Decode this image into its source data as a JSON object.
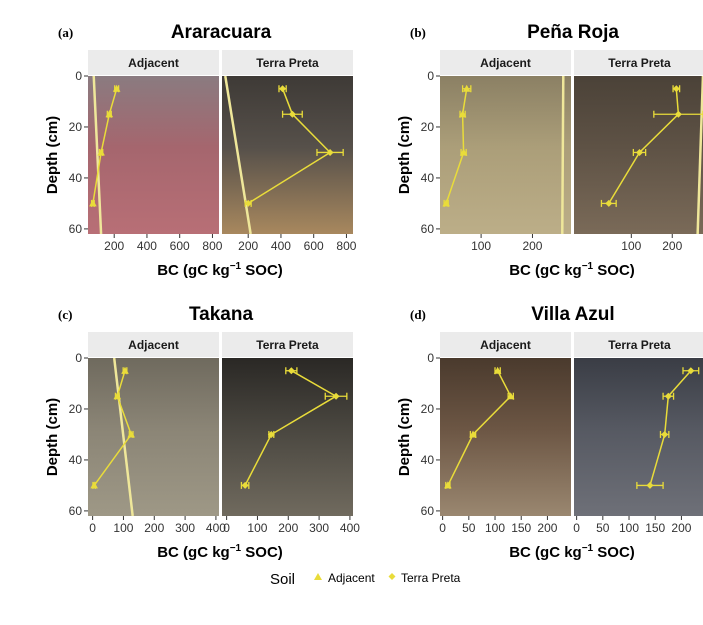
{
  "figure": {
    "background": "#ffffff",
    "strip_color": "#ebebeb",
    "series_color": "#e9dc3a",
    "axis_label_y": "Depth (cm)",
    "axis_label_x": "BC (gC kg",
    "axis_label_x_sup": "−1",
    "axis_label_x_end": " SOC)",
    "legend": {
      "title": "Soil",
      "items": [
        "Adjacent",
        "Terra Preta"
      ]
    }
  },
  "chart_data": [
    {
      "letter": "(a)",
      "title": "Araracuara",
      "type": "line",
      "ylabel": "Depth (cm)",
      "ylim": [
        0,
        62
      ],
      "yticks": [
        0,
        20,
        40,
        60
      ],
      "ytick_labels": [
        "0",
        "20",
        "40",
        "60"
      ],
      "y_reversed": true,
      "facets": [
        {
          "strip": "Adjacent",
          "xlim": [
            40,
            840
          ],
          "xticks": [
            200,
            400,
            600,
            800
          ],
          "xtick_labels": [
            "200",
            "400",
            "600",
            "800"
          ],
          "background": {
            "top": "#8a7b80",
            "mid": "#a5666e",
            "bottom": "#b86f76"
          },
          "rule": {
            "x_top": 75,
            "x_bottom": 120
          },
          "series": {
            "marker": "triangle",
            "points": [
              {
                "depth": 5,
                "bc": 215,
                "err": 12
              },
              {
                "depth": 15,
                "bc": 170,
                "err": 12
              },
              {
                "depth": 30,
                "bc": 120,
                "err": 10
              },
              {
                "depth": 50,
                "bc": 70,
                "err": 8
              }
            ]
          }
        },
        {
          "strip": "Terra Preta",
          "xlim": [
            40,
            840
          ],
          "xticks": [
            200,
            400,
            600,
            800
          ],
          "xtick_labels": [
            "200",
            "400",
            "600",
            "800"
          ],
          "background": {
            "top": "#3e3a36",
            "mid": "#56504a",
            "bottom": "#a8885e"
          },
          "rule": {
            "x_top": 60,
            "x_bottom": 215
          },
          "series": {
            "marker": "diamond",
            "points": [
              {
                "depth": 5,
                "bc": 410,
                "err": 22
              },
              {
                "depth": 15,
                "bc": 470,
                "err": 60
              },
              {
                "depth": 30,
                "bc": 700,
                "err": 80
              },
              {
                "depth": 50,
                "bc": 200,
                "err": 18
              }
            ]
          }
        }
      ]
    },
    {
      "letter": "(b)",
      "title": "Peña Roja",
      "type": "line",
      "ylabel": "Depth (cm)",
      "ylim": [
        0,
        62
      ],
      "yticks": [
        0,
        20,
        40,
        60
      ],
      "ytick_labels": [
        "0",
        "20",
        "40",
        "60"
      ],
      "y_reversed": true,
      "facets": [
        {
          "strip": "Adjacent",
          "xlim": [
            20,
            275
          ],
          "xticks": [
            100,
            200
          ],
          "xtick_labels": [
            "100",
            "200"
          ],
          "background": {
            "top": "#8b8064",
            "mid": "#ab9e79",
            "bottom": "#bcae88"
          },
          "rule": {
            "x_top": 260,
            "x_bottom": 258
          },
          "series": {
            "marker": "triangle",
            "points": [
              {
                "depth": 5,
                "bc": 72,
                "err": 8
              },
              {
                "depth": 15,
                "bc": 64,
                "err": 5
              },
              {
                "depth": 30,
                "bc": 66,
                "err": 5
              },
              {
                "depth": 50,
                "bc": 32,
                "err": 4
              }
            ]
          }
        },
        {
          "strip": "Terra Preta",
          "xlim": [
            -40,
            280
          ],
          "xticks": [
            100,
            200
          ],
          "xtick_labels": [
            "100",
            "200"
          ],
          "background": {
            "top": "#4b4238",
            "mid": "#5e5245",
            "bottom": "#7a6a58"
          },
          "rule": {
            "x_top": 275,
            "x_bottom": 262
          },
          "series": {
            "marker": "diamond",
            "points": [
              {
                "depth": 5,
                "bc": 210,
                "err": 8
              },
              {
                "depth": 15,
                "bc": 215,
                "err": 60
              },
              {
                "depth": 30,
                "bc": 120,
                "err": 15
              },
              {
                "depth": 50,
                "bc": 45,
                "err": 18
              }
            ]
          }
        }
      ]
    },
    {
      "letter": "(c)",
      "title": "Takana",
      "type": "line",
      "ylabel": "Depth (cm)",
      "ylim": [
        0,
        62
      ],
      "yticks": [
        0,
        20,
        40,
        60
      ],
      "ytick_labels": [
        "0",
        "20",
        "40",
        "60"
      ],
      "y_reversed": true,
      "facets": [
        {
          "strip": "Adjacent",
          "xlim": [
            -15,
            410
          ],
          "xticks": [
            0,
            100,
            200,
            300,
            400
          ],
          "xtick_labels": [
            "0",
            "100",
            "200",
            "300",
            "400"
          ],
          "background": {
            "top": "#6f6a5e",
            "mid": "#8b8576",
            "bottom": "#9e9886"
          },
          "rule": {
            "x_top": 70,
            "x_bottom": 130
          },
          "series": {
            "marker": "triangle",
            "points": [
              {
                "depth": 5,
                "bc": 105,
                "err": 6
              },
              {
                "depth": 15,
                "bc": 80,
                "err": 6
              },
              {
                "depth": 30,
                "bc": 125,
                "err": 6
              },
              {
                "depth": 50,
                "bc": 5,
                "err": 4
              }
            ]
          }
        },
        {
          "strip": "Terra Preta",
          "xlim": [
            -15,
            410
          ],
          "xticks": [
            0,
            100,
            200,
            300,
            400
          ],
          "xtick_labels": [
            "0",
            "100",
            "200",
            "300",
            "400"
          ],
          "background": {
            "top": "#2a2825",
            "mid": "#4a4740",
            "bottom": "#706a5e"
          },
          "rule": null,
          "series": {
            "marker": "diamond",
            "points": [
              {
                "depth": 5,
                "bc": 210,
                "err": 18
              },
              {
                "depth": 15,
                "bc": 355,
                "err": 35
              },
              {
                "depth": 30,
                "bc": 145,
                "err": 8
              },
              {
                "depth": 50,
                "bc": 60,
                "err": 12
              }
            ]
          }
        }
      ]
    },
    {
      "letter": "(d)",
      "title": "Villa Azul",
      "type": "line",
      "ylabel": "Depth (cm)",
      "ylim": [
        0,
        62
      ],
      "yticks": [
        0,
        20,
        40,
        60
      ],
      "ytick_labels": [
        "0",
        "20",
        "40",
        "60"
      ],
      "y_reversed": true,
      "facets": [
        {
          "strip": "Adjacent",
          "xlim": [
            -5,
            245
          ],
          "xticks": [
            0,
            50,
            100,
            150,
            200
          ],
          "xtick_labels": [
            "0",
            "50",
            "100",
            "150",
            "200"
          ],
          "background": {
            "top": "#4a3a2d",
            "mid": "#6c5644",
            "bottom": "#9a8770"
          },
          "rule": null,
          "series": {
            "marker": "triangle",
            "points": [
              {
                "depth": 5,
                "bc": 105,
                "err": 5
              },
              {
                "depth": 15,
                "bc": 130,
                "err": 5
              },
              {
                "depth": 30,
                "bc": 58,
                "err": 5
              },
              {
                "depth": 50,
                "bc": 10,
                "err": 4
              }
            ]
          }
        },
        {
          "strip": "Terra Preta",
          "xlim": [
            -5,
            245
          ],
          "xticks": [
            0,
            50,
            100,
            150,
            200
          ],
          "xtick_labels": [
            "0",
            "50",
            "100",
            "150",
            "200"
          ],
          "background": {
            "top": "#3a3d45",
            "mid": "#565962",
            "bottom": "#6e7078"
          },
          "rule": null,
          "series": {
            "marker": "diamond",
            "points": [
              {
                "depth": 5,
                "bc": 218,
                "err": 15
              },
              {
                "depth": 15,
                "bc": 175,
                "err": 10
              },
              {
                "depth": 30,
                "bc": 168,
                "err": 8
              },
              {
                "depth": 50,
                "bc": 140,
                "err": 25
              }
            ]
          }
        }
      ]
    }
  ]
}
